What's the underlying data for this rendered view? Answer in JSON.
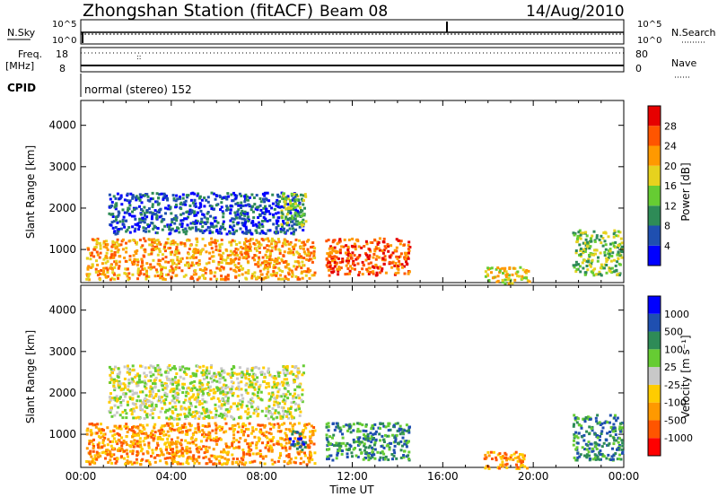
{
  "header": {
    "station": "Zhongshan Station (fitACF)",
    "beam": "Beam 08",
    "date": "14/Aug/2010"
  },
  "status_panels": {
    "nsky_label": "N.Sky",
    "nsky_ticks": [
      "10^5",
      "10^0"
    ],
    "nsearch_label": "N.Search",
    "nsearch_ticks": [
      "10^5",
      "10^0"
    ],
    "freq_label": "Freq.",
    "freq_unit": "[MHz]",
    "freq_ticks": [
      "18",
      "8"
    ],
    "nave_label": "Nave",
    "nave_ticks": [
      "80",
      "0"
    ],
    "cpid_label": "CPID",
    "cpid_value": "normal (stereo) 152"
  },
  "colors": {
    "power_scale": [
      "#0000ff",
      "#1f4fb0",
      "#2e8b57",
      "#66cc33",
      "#e6d21e",
      "#ff9900",
      "#ff5500",
      "#e60000"
    ],
    "velocity_scale": [
      "#ff0000",
      "#ff5500",
      "#ff9900",
      "#ffcc00",
      "#c8c8c8",
      "#66cc33",
      "#2e8b57",
      "#1f4fb0",
      "#0000ff"
    ]
  },
  "chart_data": [
    {
      "type": "heatmap",
      "name": "power",
      "ylabel": "Slant Range [km]",
      "yticks": [
        "1000",
        "2000",
        "3000",
        "4000"
      ],
      "ylim": [
        200,
        4600
      ],
      "xlim_hours": [
        0,
        24
      ],
      "colorbar_label": "Power [dB]",
      "colorbar_ticks": [
        "4",
        "8",
        "12",
        "16",
        "20",
        "24",
        "28"
      ],
      "range_db": [
        0,
        32
      ],
      "patches": [
        {
          "t0": 0.2,
          "t1": 10.3,
          "r0": 300,
          "r1": 1300,
          "level": 5
        },
        {
          "t0": 1.2,
          "t1": 9.8,
          "r0": 1400,
          "r1": 2400,
          "level": 1
        },
        {
          "t0": 8.8,
          "t1": 9.9,
          "r0": 1600,
          "r1": 2400,
          "level": 3
        },
        {
          "t0": 10.8,
          "t1": 14.5,
          "r0": 400,
          "r1": 1300,
          "level": 6
        },
        {
          "t0": 17.8,
          "t1": 19.8,
          "r0": 200,
          "r1": 600,
          "level": 4
        },
        {
          "t0": 21.7,
          "t1": 23.9,
          "r0": 400,
          "r1": 1500,
          "level": 3
        }
      ]
    },
    {
      "type": "heatmap",
      "name": "velocity",
      "ylabel": "Slant Range [km]",
      "yticks": [
        "1000",
        "2000",
        "3000",
        "4000"
      ],
      "ylim": [
        200,
        4600
      ],
      "xlim_hours": [
        0,
        24
      ],
      "xticks": [
        "00:00",
        "04:00",
        "08:00",
        "12:00",
        "16:00",
        "20:00",
        "00:00"
      ],
      "xlabel": "Time UT",
      "colorbar_label": "Velocity [m s⁻¹]",
      "colorbar_ticks": [
        "1000",
        "500",
        "100",
        "25",
        "-25",
        "-100",
        "-500",
        "-1000"
      ],
      "patches": [
        {
          "t0": 0.2,
          "t1": 10.3,
          "r0": 300,
          "r1": 1300,
          "level": 2
        },
        {
          "t0": 1.2,
          "t1": 9.8,
          "r0": 1400,
          "r1": 2700,
          "level": 4
        },
        {
          "t0": 9.2,
          "t1": 9.9,
          "r0": 600,
          "r1": 1100,
          "level": 7
        },
        {
          "t0": 10.8,
          "t1": 14.5,
          "r0": 400,
          "r1": 1300,
          "level": 6
        },
        {
          "t0": 17.8,
          "t1": 19.8,
          "r0": 200,
          "r1": 600,
          "level": 2
        },
        {
          "t0": 21.7,
          "t1": 23.9,
          "r0": 400,
          "r1": 1500,
          "level": 6
        }
      ]
    }
  ]
}
